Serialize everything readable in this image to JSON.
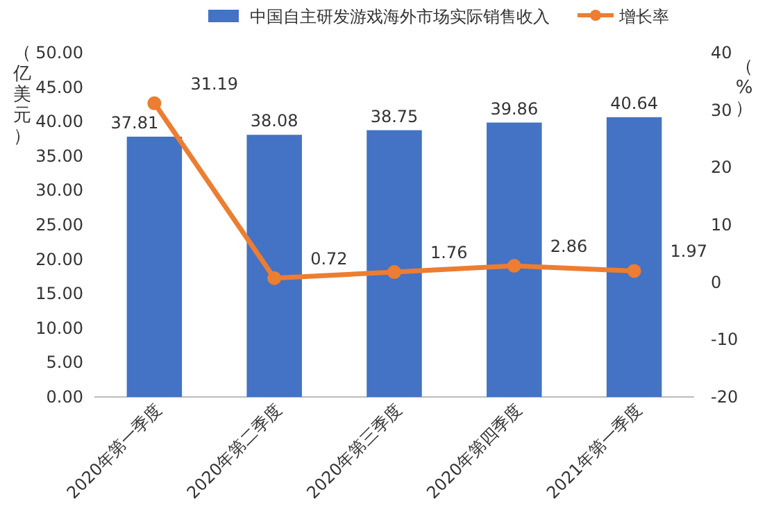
{
  "chart_data": {
    "type": "bar",
    "categories": [
      "2020年第一季度",
      "2020年第二季度",
      "2020年第三季度",
      "2020年第四季度",
      "2021年第一季度"
    ],
    "series": [
      {
        "name": "中国自主研发游戏海外市场实际销售收入",
        "color": "#4472c4",
        "values": [
          37.81,
          38.08,
          38.75,
          39.86,
          40.64
        ]
      },
      {
        "name": "增长率",
        "type": "line",
        "axis": "y2",
        "color": "#ed7d31",
        "marker": "circle",
        "values": [
          31.19,
          0.72,
          1.76,
          2.86,
          1.97
        ]
      }
    ],
    "ylabel": "（亿美元）",
    "y2label": "（%）",
    "ylim": [
      0,
      50
    ],
    "yticks": [
      {
        "value": 0,
        "label": "0.00"
      },
      {
        "value": 5,
        "label": "5.00"
      },
      {
        "value": 10,
        "label": "10.00"
      },
      {
        "value": 15,
        "label": "15.00"
      },
      {
        "value": 20,
        "label": "20.00"
      },
      {
        "value": 25,
        "label": "25.00"
      },
      {
        "value": 30,
        "label": "30.00"
      },
      {
        "value": 35,
        "label": "35.00"
      },
      {
        "value": 40,
        "label": "40.00"
      },
      {
        "value": 45,
        "label": "45.00"
      },
      {
        "value": 50,
        "label": "50.00"
      }
    ],
    "y2lim": [
      -20,
      40
    ],
    "y2ticks": [
      -20,
      -10,
      0,
      10,
      20,
      30,
      40
    ],
    "data_labels": true,
    "legend": "top",
    "grid": false
  }
}
